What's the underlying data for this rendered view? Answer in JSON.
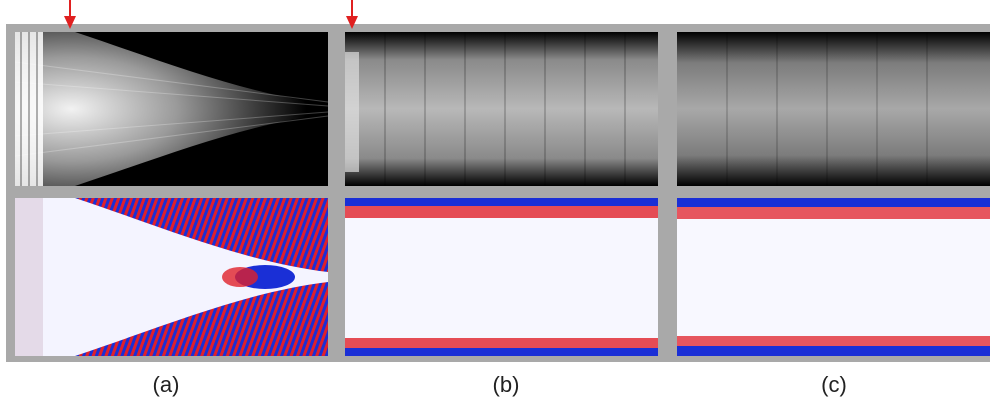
{
  "figure": {
    "columns": [
      {
        "id": "a",
        "caption": "(a)",
        "has_marker": true
      },
      {
        "id": "b",
        "caption": "(b)",
        "has_marker": true
      },
      {
        "id": "c",
        "caption": "(c)",
        "has_marker": false
      }
    ],
    "rows": [
      "magnitude-grayscale",
      "phase-red-white-blue"
    ],
    "colors": {
      "frame": "#a9a9a9",
      "background_dark": "#000000",
      "bright": "#ffffff",
      "phase_positive": "#e0202a",
      "phase_negative": "#1a2fd6",
      "marker": "#e02020"
    },
    "marker_icon": "red-down-arrow"
  }
}
